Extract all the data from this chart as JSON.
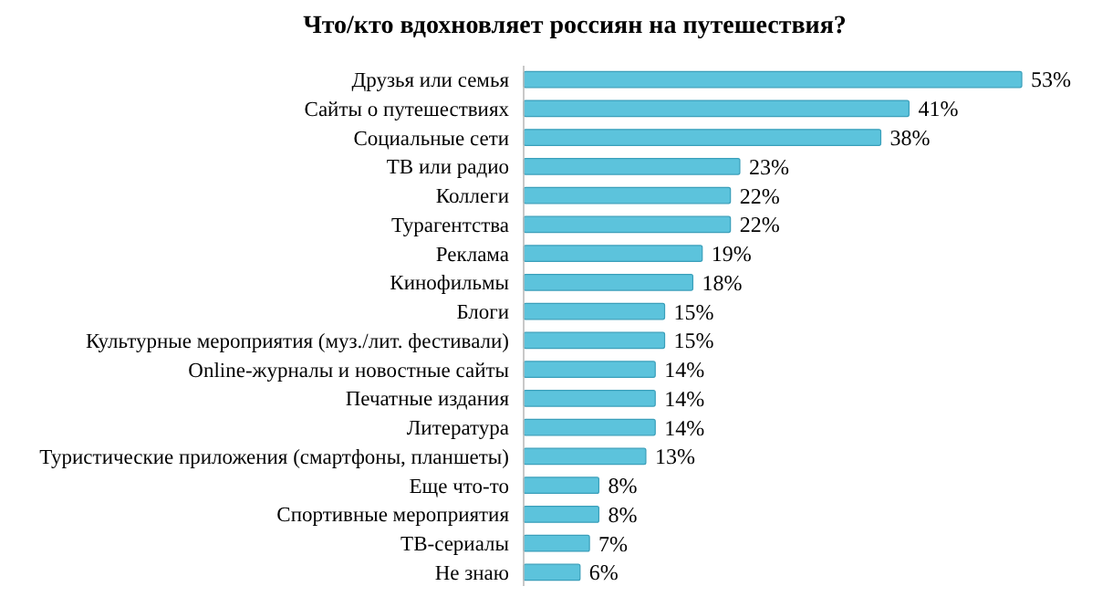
{
  "chart_data": {
    "type": "bar",
    "orientation": "horizontal",
    "title": "Что/кто вдохновляет россиян на путешествия?",
    "categories": [
      "Друзья или семья",
      "Сайты о путешествиях",
      "Социальные сети",
      "ТВ или радио",
      "Коллеги",
      "Турагентства",
      "Реклама",
      "Кинофильмы",
      "Блоги",
      "Культурные мероприятия (муз./лит. фестивали)",
      "Online-журналы и новостные сайты",
      "Печатные издания",
      "Литература",
      "Туристические приложения (смартфоны, планшеты)",
      "Еще что-то",
      "Спортивные мероприятия",
      "ТВ-сериалы",
      "Не знаю"
    ],
    "values": [
      53,
      41,
      38,
      23,
      22,
      22,
      19,
      18,
      15,
      15,
      14,
      14,
      14,
      13,
      8,
      8,
      7,
      6
    ],
    "value_labels": [
      "53%",
      "41%",
      "38%",
      "23%",
      "22%",
      "22%",
      "19%",
      "18%",
      "15%",
      "15%",
      "14%",
      "14%",
      "14%",
      "13%",
      "8%",
      "8%",
      "7%",
      "6%"
    ],
    "color": "#5cc3dc",
    "tick_labels": "y"
  }
}
